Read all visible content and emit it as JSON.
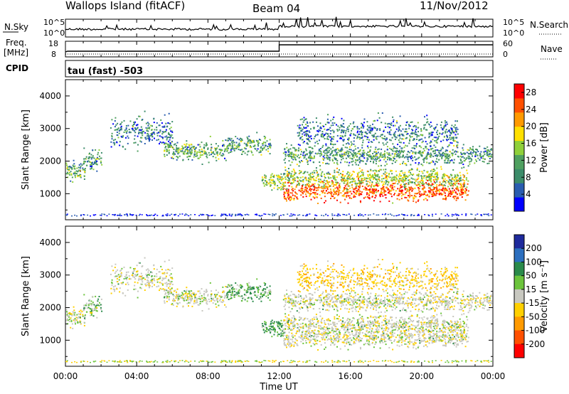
{
  "header": {
    "station": "Wallops Island (fitACF)",
    "beam": "Beam 04",
    "date": "11/Nov/2012"
  },
  "noise_panel": {
    "left_label": "N.Sky",
    "right_label": "N.Search",
    "left_ticks": [
      "10^5",
      "10^0"
    ],
    "right_ticks": [
      "10^5",
      "10^0"
    ]
  },
  "freq_panel": {
    "left_label_1": "Freq.",
    "left_label_2": "[MHz]",
    "right_label": "Nave",
    "left_ticks": [
      "18",
      "8"
    ],
    "right_ticks": [
      "60",
      "0"
    ]
  },
  "cpid_panel": {
    "label": "CPID",
    "program": "tau (fast) -503"
  },
  "x_axis": {
    "label": "Time UT",
    "ticks": [
      "00:00",
      "04:00",
      "08:00",
      "12:00",
      "16:00",
      "20:00",
      "00:00"
    ]
  },
  "colors": {
    "power_scale": [
      "#0000ff",
      "#2a5db0",
      "#3c8c6a",
      "#4fa060",
      "#8fd03a",
      "#ffe000",
      "#ff9a00",
      "#ff5000",
      "#ff0000"
    ],
    "velocity_scale": [
      "#1e2a9c",
      "#2c6fbf",
      "#2a8a4a",
      "#6cc43c",
      "#c8c8c0",
      "#ffd000",
      "#ff9a00",
      "#ff5000",
      "#ff0000"
    ]
  },
  "chart_data": [
    {
      "type": "heatmap",
      "name": "power",
      "ylabel": "Slant Range [km]",
      "xlabel": "Time UT",
      "xlim": [
        0,
        24
      ],
      "ylim": [
        200,
        4500
      ],
      "y_ticks": [
        "1000",
        "2000",
        "3000",
        "4000"
      ],
      "colorbar_label": "Power [dB]",
      "colorbar_ticks": [
        "4",
        "8",
        "12",
        "16",
        "20",
        "24",
        "28"
      ],
      "colorbar_range": [
        0,
        30
      ],
      "features": [
        {
          "t_start": 0.0,
          "t_end": 1.1,
          "range": 1750,
          "level": 10
        },
        {
          "t_start": 1.0,
          "t_end": 2.0,
          "range": 2050,
          "level": 9
        },
        {
          "t_start": 2.5,
          "t_end": 6.0,
          "range": 2900,
          "level": 6
        },
        {
          "t_start": 5.5,
          "t_end": 9.0,
          "range": 2350,
          "level": 10
        },
        {
          "t_start": 9.0,
          "t_end": 11.5,
          "range": 2500,
          "level": 9
        },
        {
          "t_start": 11.0,
          "t_end": 12.2,
          "range": 1400,
          "level": 14
        },
        {
          "t_start": 12.2,
          "t_end": 22.6,
          "range": 1100,
          "level": 24
        },
        {
          "t_start": 12.2,
          "t_end": 22.6,
          "range": 1500,
          "level": 14
        },
        {
          "t_start": 12.2,
          "t_end": 23.9,
          "range": 2200,
          "level": 9
        },
        {
          "t_start": 13.0,
          "t_end": 22.0,
          "range": 2900,
          "level": 6
        }
      ]
    },
    {
      "type": "heatmap",
      "name": "velocity",
      "ylabel": "Slant Range [km]",
      "xlabel": "Time UT",
      "xlim": [
        0,
        24
      ],
      "ylim": [
        200,
        4500
      ],
      "y_ticks": [
        "1000",
        "2000",
        "3000",
        "4000"
      ],
      "colorbar_label": "Velocity [m s⁻¹]",
      "colorbar_ticks": [
        "200",
        "100",
        "50",
        "15",
        "-15",
        "-50",
        "-100",
        "-200"
      ],
      "colorbar_range": [
        -250,
        250
      ],
      "features": [
        {
          "t_start": 0.0,
          "t_end": 1.1,
          "range": 1750,
          "level": 0
        },
        {
          "t_start": 1.0,
          "t_end": 2.0,
          "range": 2050,
          "level": 20
        },
        {
          "t_start": 2.5,
          "t_end": 6.0,
          "range": 2900,
          "level": 0
        },
        {
          "t_start": 5.5,
          "t_end": 9.0,
          "range": 2350,
          "level": 0
        },
        {
          "t_start": 9.0,
          "t_end": 11.5,
          "range": 2500,
          "level": 30
        },
        {
          "t_start": 11.0,
          "t_end": 12.2,
          "range": 1400,
          "level": 40
        },
        {
          "t_start": 12.2,
          "t_end": 22.6,
          "range": 1100,
          "level": 0
        },
        {
          "t_start": 12.2,
          "t_end": 22.6,
          "range": 1500,
          "level": 0
        },
        {
          "t_start": 12.2,
          "t_end": 23.9,
          "range": 2200,
          "level": 0
        },
        {
          "t_start": 13.0,
          "t_end": 22.0,
          "range": 2900,
          "level": -30
        }
      ]
    }
  ]
}
